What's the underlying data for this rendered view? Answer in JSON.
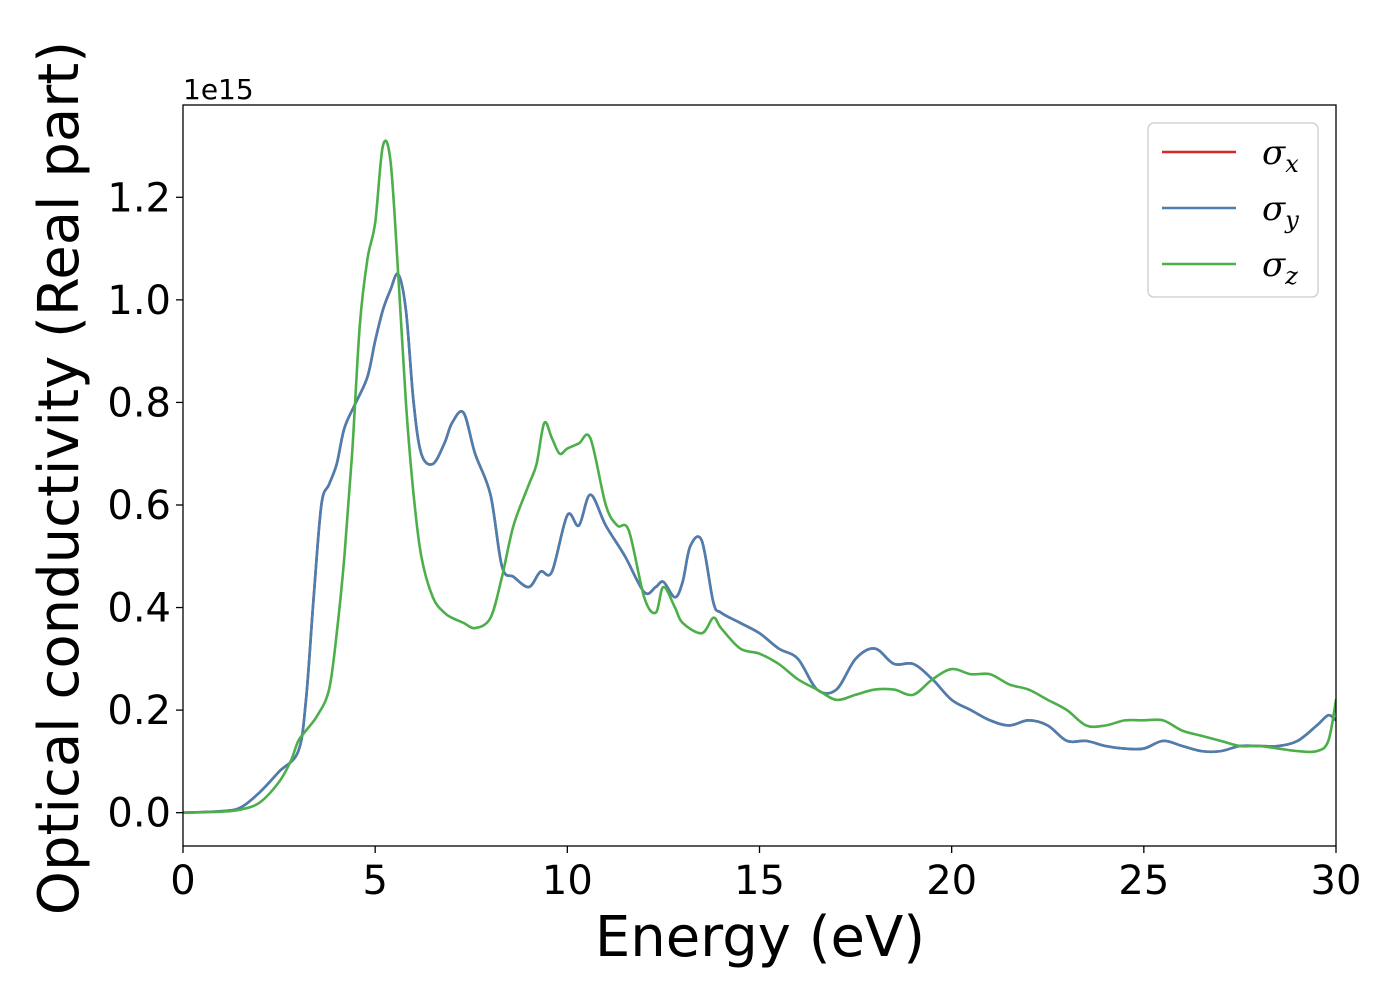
{
  "chart_data": {
    "type": "line",
    "xlabel": "Energy (eV)",
    "ylabel": "Optical conductivity (Real part)",
    "y_offset_text": "1e15",
    "y_scale": 1000000000000000.0,
    "xlim": [
      0,
      30
    ],
    "ylim": [
      -0.065,
      1.38
    ],
    "x_ticks": [
      0,
      5,
      10,
      15,
      20,
      25,
      30
    ],
    "x_tick_labels": [
      "0",
      "5",
      "10",
      "15",
      "20",
      "25",
      "30"
    ],
    "y_ticks": [
      0.0,
      0.2,
      0.4,
      0.6,
      0.8,
      1.0,
      1.2
    ],
    "y_tick_labels": [
      "0.0",
      "0.2",
      "0.4",
      "0.6",
      "0.8",
      "1.0",
      "1.2"
    ],
    "grid": false,
    "legend_position": "top-right",
    "series": [
      {
        "name": "σ_x",
        "legend_base": "σ",
        "legend_sub": "x",
        "color": "#d62728",
        "x": [
          0,
          1,
          1.5,
          2,
          2.5,
          3,
          3.2,
          3.4,
          3.6,
          3.8,
          4,
          4.2,
          4.5,
          4.8,
          5,
          5.2,
          5.4,
          5.6,
          5.8,
          6,
          6.2,
          6.5,
          6.8,
          7,
          7.3,
          7.6,
          8,
          8.3,
          8.6,
          9,
          9.3,
          9.6,
          10,
          10.3,
          10.6,
          11,
          11.5,
          12,
          12.3,
          12.5,
          12.8,
          13,
          13.2,
          13.5,
          13.8,
          14,
          14.5,
          15,
          15.5,
          16,
          16.5,
          17,
          17.5,
          18,
          18.5,
          19,
          19.5,
          20,
          20.5,
          21,
          21.5,
          22,
          22.5,
          23,
          23.5,
          24,
          24.5,
          25,
          25.5,
          26,
          26.5,
          27,
          27.5,
          28,
          28.5,
          29,
          29.5,
          29.8,
          30
        ],
        "y": [
          0,
          0.003,
          0.01,
          0.04,
          0.08,
          0.12,
          0.22,
          0.42,
          0.6,
          0.64,
          0.68,
          0.75,
          0.8,
          0.85,
          0.92,
          0.98,
          1.02,
          1.05,
          0.98,
          0.8,
          0.7,
          0.68,
          0.72,
          0.76,
          0.78,
          0.7,
          0.62,
          0.48,
          0.46,
          0.44,
          0.47,
          0.47,
          0.58,
          0.56,
          0.62,
          0.56,
          0.5,
          0.43,
          0.44,
          0.45,
          0.42,
          0.45,
          0.52,
          0.53,
          0.41,
          0.39,
          0.37,
          0.35,
          0.32,
          0.3,
          0.24,
          0.24,
          0.3,
          0.32,
          0.29,
          0.29,
          0.26,
          0.22,
          0.2,
          0.18,
          0.17,
          0.18,
          0.17,
          0.14,
          0.14,
          0.13,
          0.125,
          0.125,
          0.14,
          0.13,
          0.12,
          0.12,
          0.13,
          0.13,
          0.13,
          0.14,
          0.17,
          0.19,
          0.18
        ]
      },
      {
        "name": "σ_y",
        "legend_base": "σ",
        "legend_sub": "y",
        "color": "#4a7fb0",
        "x": [
          0,
          1,
          1.5,
          2,
          2.5,
          3,
          3.2,
          3.4,
          3.6,
          3.8,
          4,
          4.2,
          4.5,
          4.8,
          5,
          5.2,
          5.4,
          5.6,
          5.8,
          6,
          6.2,
          6.5,
          6.8,
          7,
          7.3,
          7.6,
          8,
          8.3,
          8.6,
          9,
          9.3,
          9.6,
          10,
          10.3,
          10.6,
          11,
          11.5,
          12,
          12.3,
          12.5,
          12.8,
          13,
          13.2,
          13.5,
          13.8,
          14,
          14.5,
          15,
          15.5,
          16,
          16.5,
          17,
          17.5,
          18,
          18.5,
          19,
          19.5,
          20,
          20.5,
          21,
          21.5,
          22,
          22.5,
          23,
          23.5,
          24,
          24.5,
          25,
          25.5,
          26,
          26.5,
          27,
          27.5,
          28,
          28.5,
          29,
          29.5,
          29.8,
          30
        ],
        "y": [
          0,
          0.003,
          0.01,
          0.04,
          0.08,
          0.12,
          0.22,
          0.42,
          0.6,
          0.64,
          0.68,
          0.75,
          0.8,
          0.85,
          0.92,
          0.98,
          1.02,
          1.05,
          0.98,
          0.8,
          0.7,
          0.68,
          0.72,
          0.76,
          0.78,
          0.7,
          0.62,
          0.48,
          0.46,
          0.44,
          0.47,
          0.47,
          0.58,
          0.56,
          0.62,
          0.56,
          0.5,
          0.43,
          0.44,
          0.45,
          0.42,
          0.45,
          0.52,
          0.53,
          0.41,
          0.39,
          0.37,
          0.35,
          0.32,
          0.3,
          0.24,
          0.24,
          0.3,
          0.32,
          0.29,
          0.29,
          0.26,
          0.22,
          0.2,
          0.18,
          0.17,
          0.18,
          0.17,
          0.14,
          0.14,
          0.13,
          0.125,
          0.125,
          0.14,
          0.13,
          0.12,
          0.12,
          0.13,
          0.13,
          0.13,
          0.14,
          0.17,
          0.19,
          0.18
        ]
      },
      {
        "name": "σ_z",
        "legend_base": "σ",
        "legend_sub": "z",
        "color": "#4daf4a",
        "x": [
          0,
          1,
          1.5,
          2,
          2.5,
          2.8,
          3,
          3.2,
          3.5,
          3.8,
          4,
          4.2,
          4.4,
          4.6,
          4.8,
          5,
          5.2,
          5.4,
          5.6,
          5.8,
          6,
          6.2,
          6.5,
          6.8,
          7,
          7.3,
          7.6,
          8,
          8.3,
          8.6,
          9,
          9.2,
          9.4,
          9.6,
          9.8,
          10,
          10.3,
          10.6,
          11,
          11.3,
          11.6,
          12,
          12.3,
          12.5,
          12.8,
          13,
          13.5,
          13.8,
          14,
          14.5,
          15,
          15.5,
          16,
          16.5,
          17,
          17.5,
          18,
          18.5,
          19,
          19.5,
          20,
          20.5,
          21,
          21.5,
          22,
          22.5,
          23,
          23.5,
          24,
          24.5,
          25,
          25.5,
          26,
          26.5,
          27,
          27.5,
          28,
          28.5,
          29,
          29.5,
          29.8,
          30
        ],
        "y": [
          0,
          0.002,
          0.006,
          0.02,
          0.06,
          0.1,
          0.14,
          0.16,
          0.19,
          0.24,
          0.35,
          0.5,
          0.7,
          0.95,
          1.08,
          1.15,
          1.3,
          1.27,
          1.05,
          0.8,
          0.62,
          0.5,
          0.42,
          0.39,
          0.38,
          0.37,
          0.36,
          0.38,
          0.46,
          0.56,
          0.64,
          0.68,
          0.76,
          0.73,
          0.7,
          0.71,
          0.72,
          0.73,
          0.6,
          0.56,
          0.55,
          0.42,
          0.39,
          0.44,
          0.4,
          0.37,
          0.35,
          0.38,
          0.36,
          0.32,
          0.31,
          0.29,
          0.26,
          0.24,
          0.22,
          0.23,
          0.24,
          0.24,
          0.23,
          0.26,
          0.28,
          0.27,
          0.27,
          0.25,
          0.24,
          0.22,
          0.2,
          0.17,
          0.17,
          0.18,
          0.18,
          0.18,
          0.16,
          0.15,
          0.14,
          0.13,
          0.13,
          0.125,
          0.12,
          0.12,
          0.14,
          0.22
        ]
      }
    ]
  }
}
